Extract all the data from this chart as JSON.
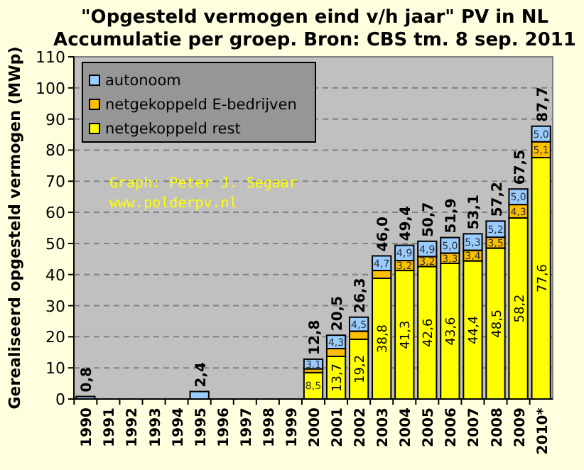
{
  "chart_data": {
    "type": "bar",
    "stacked": true,
    "title": "\"Opgesteld vermogen eind v/h jaar\" PV in NL",
    "subtitle": "Accumulatie per groep. Bron: CBS tm. 8 sep. 2011",
    "ylabel": "Gerealiseerd opgesteld vermogen (MWp)",
    "categories": [
      "1990",
      "1991",
      "1992",
      "1993",
      "1994",
      "1995",
      "1996",
      "1997",
      "1998",
      "1999",
      "2000",
      "2001",
      "2002",
      "2003",
      "2004",
      "2005",
      "2006",
      "2007",
      "2008",
      "2009",
      "2010*"
    ],
    "series": [
      {
        "name": "netgekoppeld rest",
        "color": "#ffff00",
        "values": [
          null,
          null,
          null,
          null,
          null,
          null,
          null,
          null,
          null,
          null,
          8.5,
          13.7,
          19.2,
          38.8,
          41.3,
          42.6,
          43.6,
          44.4,
          48.5,
          58.2,
          77.6
        ],
        "value_labels": [
          null,
          null,
          null,
          null,
          null,
          null,
          null,
          null,
          null,
          null,
          "8,5",
          "13,7",
          "19,2",
          "38,8",
          "41,3",
          "42,6",
          "43,6",
          "44,4",
          "48,5",
          "58,2",
          "77,6"
        ]
      },
      {
        "name": "netgekoppeld E-bedrijven",
        "color": "#ffc000",
        "values": [
          null,
          null,
          null,
          null,
          null,
          null,
          null,
          null,
          null,
          null,
          1.2,
          2.5,
          2.6,
          2.5,
          3.2,
          3.2,
          3.3,
          3.4,
          3.5,
          4.3,
          5.1
        ],
        "value_labels": [
          null,
          null,
          null,
          null,
          null,
          null,
          null,
          null,
          null,
          null,
          null,
          null,
          null,
          null,
          "3,2",
          "3,2",
          "3,3",
          "3,4",
          "3,5",
          "4,3",
          "5,1"
        ]
      },
      {
        "name": "autonoom",
        "color": "#99ccff",
        "values": [
          0.8,
          null,
          null,
          null,
          null,
          2.4,
          null,
          null,
          null,
          null,
          3.1,
          4.3,
          4.5,
          4.7,
          4.9,
          4.9,
          5.0,
          5.3,
          5.2,
          5.0,
          5.0
        ],
        "value_labels": [
          null,
          null,
          null,
          null,
          null,
          null,
          null,
          null,
          null,
          null,
          "3,1",
          "4,3",
          "4,5",
          "4,7",
          "4,9",
          "4,9",
          "5,0",
          "5,3",
          "5,2",
          "5,0",
          "5,0"
        ]
      }
    ],
    "totals": [
      "0,8",
      null,
      null,
      null,
      null,
      "2,4",
      null,
      null,
      null,
      null,
      "12,8",
      "20,5",
      "26,3",
      "46,0",
      "49,4",
      "50,7",
      "51,9",
      "53,1",
      "57,2",
      "67,5",
      "87,7"
    ],
    "ylim": [
      0,
      110
    ],
    "yticks": [
      0,
      10,
      20,
      30,
      40,
      50,
      60,
      70,
      80,
      90,
      100,
      110
    ],
    "grid": "y",
    "legend": "top left",
    "annotations": [
      "Graph: Peter J. Segaar",
      "www.polderpv.nl"
    ]
  }
}
